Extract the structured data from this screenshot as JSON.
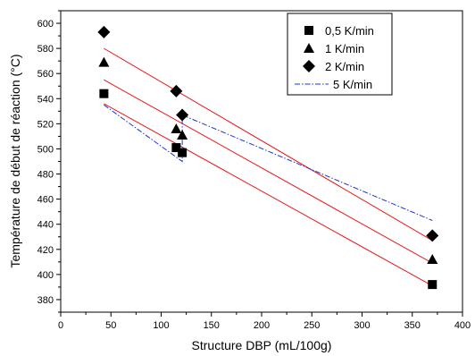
{
  "chart_data": {
    "type": "scatter",
    "xlabel": "Structure DBP (mL/100g)",
    "ylabel": "Température de début de réaction (°C)",
    "xlim": [
      0,
      400
    ],
    "ylim": [
      370,
      610
    ],
    "x_ticks": [
      "0",
      "50",
      "100",
      "150",
      "200",
      "250",
      "300",
      "350",
      "400"
    ],
    "y_ticks": [
      "380",
      "400",
      "420",
      "440",
      "460",
      "480",
      "500",
      "520",
      "540",
      "560",
      "580",
      "600"
    ],
    "grid": false,
    "legend_position": "top-right",
    "series": [
      {
        "name": "0,5 K/min",
        "marker": "square",
        "x": [
          43,
          115,
          121,
          370
        ],
        "y": [
          544,
          501,
          497,
          392
        ],
        "fit": {
          "x": [
            43,
            370
          ],
          "y": [
            536,
            391
          ],
          "color": "#e41a1c",
          "style": "solid"
        }
      },
      {
        "name": "1 K/min",
        "marker": "triangle",
        "x": [
          43,
          115,
          121,
          370
        ],
        "y": [
          569,
          516,
          511,
          412
        ],
        "fit": {
          "x": [
            43,
            370
          ],
          "y": [
            555,
            409
          ],
          "color": "#e41a1c",
          "style": "solid"
        }
      },
      {
        "name": "2 K/min",
        "marker": "diamond",
        "x": [
          43,
          115,
          121,
          370
        ],
        "y": [
          593,
          546,
          527,
          431
        ],
        "fit": {
          "x": [
            43,
            370
          ],
          "y": [
            580,
            427
          ],
          "color": "#e41a1c",
          "style": "solid"
        }
      },
      {
        "name": "5 K/min",
        "marker": "none",
        "x": [
          43,
          121,
          121,
          370
        ],
        "y": [
          535,
          490,
          527,
          443
        ],
        "color": "#2233cc",
        "style": "dash-dot"
      }
    ]
  }
}
